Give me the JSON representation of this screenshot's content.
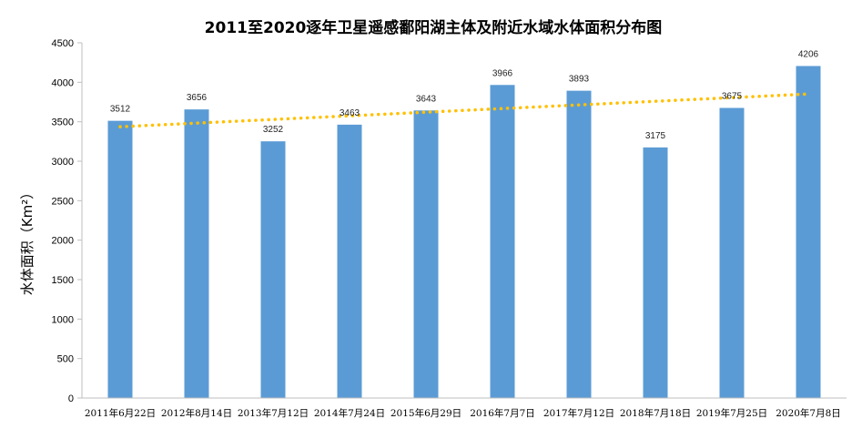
{
  "chart_data": {
    "type": "bar",
    "title": "2011至2020逐年卫星遥感鄱阳湖主体及附近水域水体面积分布图",
    "ylabel": "水体面积（Km²）",
    "xlabel": "",
    "ylim": [
      0,
      4500
    ],
    "yticks": [
      0,
      500,
      1000,
      1500,
      2000,
      2500,
      3000,
      3500,
      4000,
      4500
    ],
    "categories": [
      "2011年6月22日",
      "2012年8月14日",
      "2013年7月12日",
      "2014年7月24日",
      "2015年6月29日",
      "2016年7月7日",
      "2017年7月12日",
      "2018年7月18日",
      "2019年7月25日",
      "2020年7月8日"
    ],
    "values": [
      3512,
      3656,
      3252,
      3463,
      3643,
      3966,
      3893,
      3175,
      3675,
      4206
    ],
    "data_labels": [
      "3512",
      "3656",
      "3252",
      "3463",
      "3643",
      "3966",
      "3893",
      "3175",
      "3675",
      "4206"
    ],
    "trendline": {
      "type": "linear",
      "style": "dotted"
    },
    "grid": false,
    "legend": "none",
    "colors": {
      "bar": "#5b9bd5",
      "trendline": "#ffc000",
      "axis": "#bfbfbf"
    }
  }
}
